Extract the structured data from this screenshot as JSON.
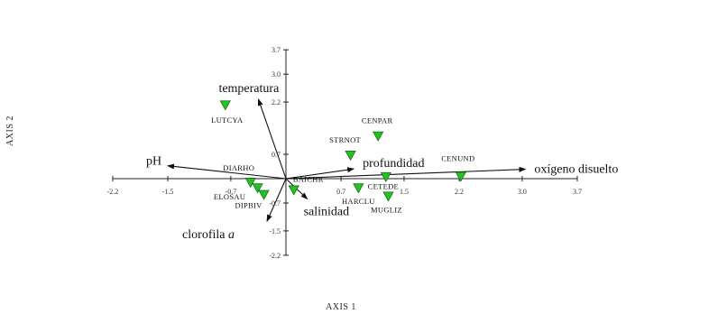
{
  "chart_data": {
    "type": "scatter",
    "subtype": "ordination-biplot",
    "xlabel": "AXIS 1",
    "ylabel": "AXIS 2",
    "xlim": [
      -2.2,
      3.7
    ],
    "ylim": [
      -2.2,
      3.7
    ],
    "x_ticks": [
      "-2.2",
      "-1.5",
      "-0.7",
      "0.7",
      "1.5",
      "2.2",
      "3.0",
      "3.7"
    ],
    "y_ticks": [
      "3.7",
      "3.0",
      "2.2",
      "0.7",
      "-0.7",
      "-1.5",
      "-2.2"
    ],
    "x_tick_values": [
      -2.2,
      -1.5,
      -0.7,
      0.7,
      1.5,
      2.2,
      3.0,
      3.7
    ],
    "y_tick_values": [
      3.7,
      3.0,
      2.2,
      0.7,
      -0.7,
      -1.5,
      -2.2
    ],
    "marker_color": "#22c322",
    "marker_shape": "inverted-triangle",
    "points": [
      {
        "label": "LUTCYA",
        "x": -0.77,
        "y": 2.12
      },
      {
        "label": "CENPAR",
        "x": 1.17,
        "y": 1.23
      },
      {
        "label": "STRNOT",
        "x": 0.82,
        "y": 0.68
      },
      {
        "label": "CENUND",
        "x": 2.22,
        "y": 0.07
      },
      {
        "label": "DIARHO",
        "x": -0.45,
        "y": -0.1
      },
      {
        "label": "ELOSAU",
        "x": -0.36,
        "y": -0.26
      },
      {
        "label": "DIPBIV",
        "x": -0.28,
        "y": -0.45
      },
      {
        "label": "BAICHR",
        "x": 0.1,
        "y": -0.32
      },
      {
        "label": "HARCLU",
        "x": 0.92,
        "y": -0.26
      },
      {
        "label": "CETEDE",
        "x": 1.27,
        "y": 0.06
      },
      {
        "label": "MUGLIZ",
        "x": 1.3,
        "y": -0.5
      }
    ],
    "vectors": [
      {
        "label": "temperatura",
        "x": -0.35,
        "y": 2.28,
        "italic_suffix": ""
      },
      {
        "label": "pH",
        "x": -1.5,
        "y": 0.37,
        "italic_suffix": ""
      },
      {
        "label": "profundidad",
        "x": 0.86,
        "y": 0.28,
        "italic_suffix": ""
      },
      {
        "label": "oxígeno disuelto",
        "x": 3.04,
        "y": 0.27,
        "italic_suffix": ""
      },
      {
        "label": "salinidad",
        "x": 0.27,
        "y": -0.58,
        "italic_suffix": ""
      },
      {
        "label": "clorofila ",
        "x": -0.24,
        "y": -1.22,
        "italic_suffix": "a"
      }
    ]
  }
}
